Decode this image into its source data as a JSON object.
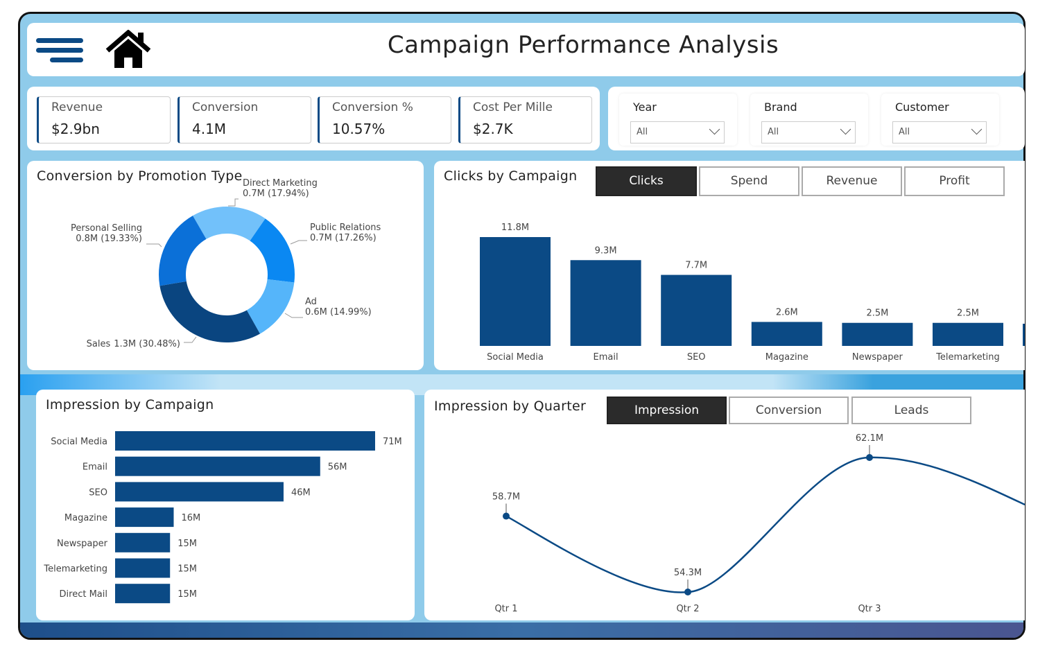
{
  "header": {
    "title": "Campaign Performance Analysis",
    "menu_icon": "hamburger-icon",
    "home_icon": "home-icon"
  },
  "kpis": [
    {
      "label": "Revenue",
      "value": "$2.9bn"
    },
    {
      "label": "Conversion",
      "value": "4.1M"
    },
    {
      "label": "Conversion %",
      "value": "10.57%"
    },
    {
      "label": "Cost Per Mille",
      "value": "$2.7K"
    }
  ],
  "filters": [
    {
      "label": "Year",
      "value": "All"
    },
    {
      "label": "Brand",
      "value": "All"
    },
    {
      "label": "Customer",
      "value": "All"
    }
  ],
  "colors": {
    "bar": "#0b4a85",
    "accent": "#8fcbea"
  },
  "chart_data": [
    {
      "type": "pie",
      "title": "Conversion by Promotion Type",
      "slices": [
        {
          "name": "Direct Marketing",
          "value": 0.7,
          "pct": 17.94,
          "label": "0.7M (17.94%)",
          "color": "#72c1fa"
        },
        {
          "name": "Public Relations",
          "value": 0.7,
          "pct": 17.26,
          "label": "0.7M (17.26%)",
          "color": "#0a88f2"
        },
        {
          "name": "Ad",
          "value": 0.6,
          "pct": 14.99,
          "label": "0.6M (14.99%)",
          "color": "#55b5fa"
        },
        {
          "name": "Sales",
          "value": 1.3,
          "pct": 30.48,
          "label": "1.3M (30.48%)",
          "color": "#0a4580"
        },
        {
          "name": "Personal Selling",
          "value": 0.8,
          "pct": 19.33,
          "label": "0.8M (19.33%)",
          "color": "#0b70d8"
        }
      ]
    },
    {
      "type": "bar",
      "title": "Clicks by Campaign",
      "buttons": [
        "Clicks",
        "Spend",
        "Revenue",
        "Profit"
      ],
      "active": "Clicks",
      "categories": [
        "Social Media",
        "Email",
        "SEO",
        "Magazine",
        "Newspaper",
        "Telemarketing"
      ],
      "values": [
        11.8,
        9.3,
        7.7,
        2.6,
        2.5,
        2.5
      ],
      "labels": [
        "11.8M",
        "9.3M",
        "7.7M",
        "2.6M",
        "2.5M",
        "2.5M"
      ]
    },
    {
      "type": "bar",
      "orientation": "horizontal",
      "title": "Impression by Campaign",
      "categories": [
        "Social Media",
        "Email",
        "SEO",
        "Magazine",
        "Newspaper",
        "Telemarketing",
        "Direct Mail"
      ],
      "values": [
        71,
        56,
        46,
        16,
        15,
        15,
        15
      ],
      "labels": [
        "71M",
        "56M",
        "46M",
        "16M",
        "15M",
        "15M",
        "15M"
      ]
    },
    {
      "type": "line",
      "title": "Impression by Quarter",
      "buttons": [
        "Impression",
        "Conversion",
        "Leads"
      ],
      "active": "Impression",
      "categories": [
        "Qtr 1",
        "Qtr 2",
        "Qtr 3"
      ],
      "values": [
        58.7,
        54.3,
        62.1
      ],
      "labels": [
        "58.7M",
        "54.3M",
        "62.1M"
      ]
    }
  ]
}
